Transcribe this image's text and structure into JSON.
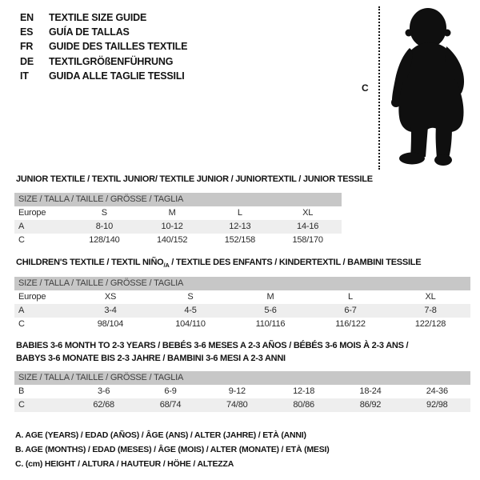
{
  "colors": {
    "header_band": "#c7c7c7",
    "row_alt": "#eeeeee",
    "silhouette": "#0f0f0f"
  },
  "languages": [
    {
      "code": "EN",
      "title": "TEXTILE SIZE GUIDE"
    },
    {
      "code": "ES",
      "title": "GUÍA DE TALLAS"
    },
    {
      "code": "FR",
      "title": "GUIDE DES TAILLES TEXTILE"
    },
    {
      "code": "DE",
      "title": "TEXTILGRÖßENFÜHRUNG"
    },
    {
      "code": "IT",
      "title": "GUIDA ALLE TAGLIE TESSILI"
    }
  ],
  "figure": {
    "height_label": "C",
    "image_name": "baby-silhouette"
  },
  "tables": [
    {
      "title_lines": [
        "JUNIOR TEXTILE / TEXTIL JUNIOR/ TEXTILE JUNIOR / JUNIORTEXTIL / JUNIOR TESSILE"
      ],
      "size_header": "SIZE / TALLA / TAILLE / GRÖSSE / TAGLIA",
      "rows": [
        {
          "label": "Europe",
          "cells": [
            "S",
            "M",
            "L",
            "XL"
          ]
        },
        {
          "label": "A",
          "cells": [
            "8-10",
            "10-12",
            "12-13",
            "14-16"
          ]
        },
        {
          "label": "C",
          "cells": [
            "128/140",
            "140/152",
            "152/158",
            "158/170"
          ]
        }
      ]
    },
    {
      "title_pre": "CHILDREN'S TEXTILE / TEXTIL NIÑO",
      "title_sub": "/A",
      "title_post": " / TEXTILE DES ENFANTS / KINDERTEXTIL / BAMBINI TESSILE",
      "size_header": "SIZE / TALLA / TAILLE / GRÖSSE / TAGLIA",
      "rows": [
        {
          "label": "Europe",
          "cells": [
            "XS",
            "S",
            "M",
            "L",
            "XL"
          ]
        },
        {
          "label": "A",
          "cells": [
            "3-4",
            "4-5",
            "5-6",
            "6-7",
            "7-8"
          ]
        },
        {
          "label": "C",
          "cells": [
            "98/104",
            "104/110",
            "110/116",
            "116/122",
            "122/128"
          ]
        }
      ]
    },
    {
      "title_lines": [
        "BABIES 3-6 MONTH TO 2-3 YEARS / BEBÉS 3-6 MESES A 2-3 AÑOS / BÉBÉS 3-6 MOIS À 2-3 ANS /",
        "BABYS 3-6 MONATE BIS 2-3 JAHRE / BAMBINI 3-6 MESI A 2-3 ANNI"
      ],
      "size_header": "SIZE / TALLA / TAILLE / GRÖSSE / TAGLIA",
      "rows": [
        {
          "label": "B",
          "cells": [
            "3-6",
            "6-9",
            "9-12",
            "12-18",
            "18-24",
            "24-36"
          ]
        },
        {
          "label": "C",
          "cells": [
            "62/68",
            "68/74",
            "74/80",
            "80/86",
            "86/92",
            "92/98"
          ]
        }
      ]
    }
  ],
  "footnotes": [
    "A. AGE (YEARS) / EDAD (AÑOS) / ÂGE (ANS) / ALTER (JAHRE) / ETÀ (ANNI)",
    "B. AGE (MONTHS) / EDAD (MESES) / ÂGE (MOIS) / ALTER (MONATE) / ETÀ (MESI)",
    "C. (cm) HEIGHT / ALTURA / HAUTEUR / HÖHE / ALTEZZA"
  ]
}
